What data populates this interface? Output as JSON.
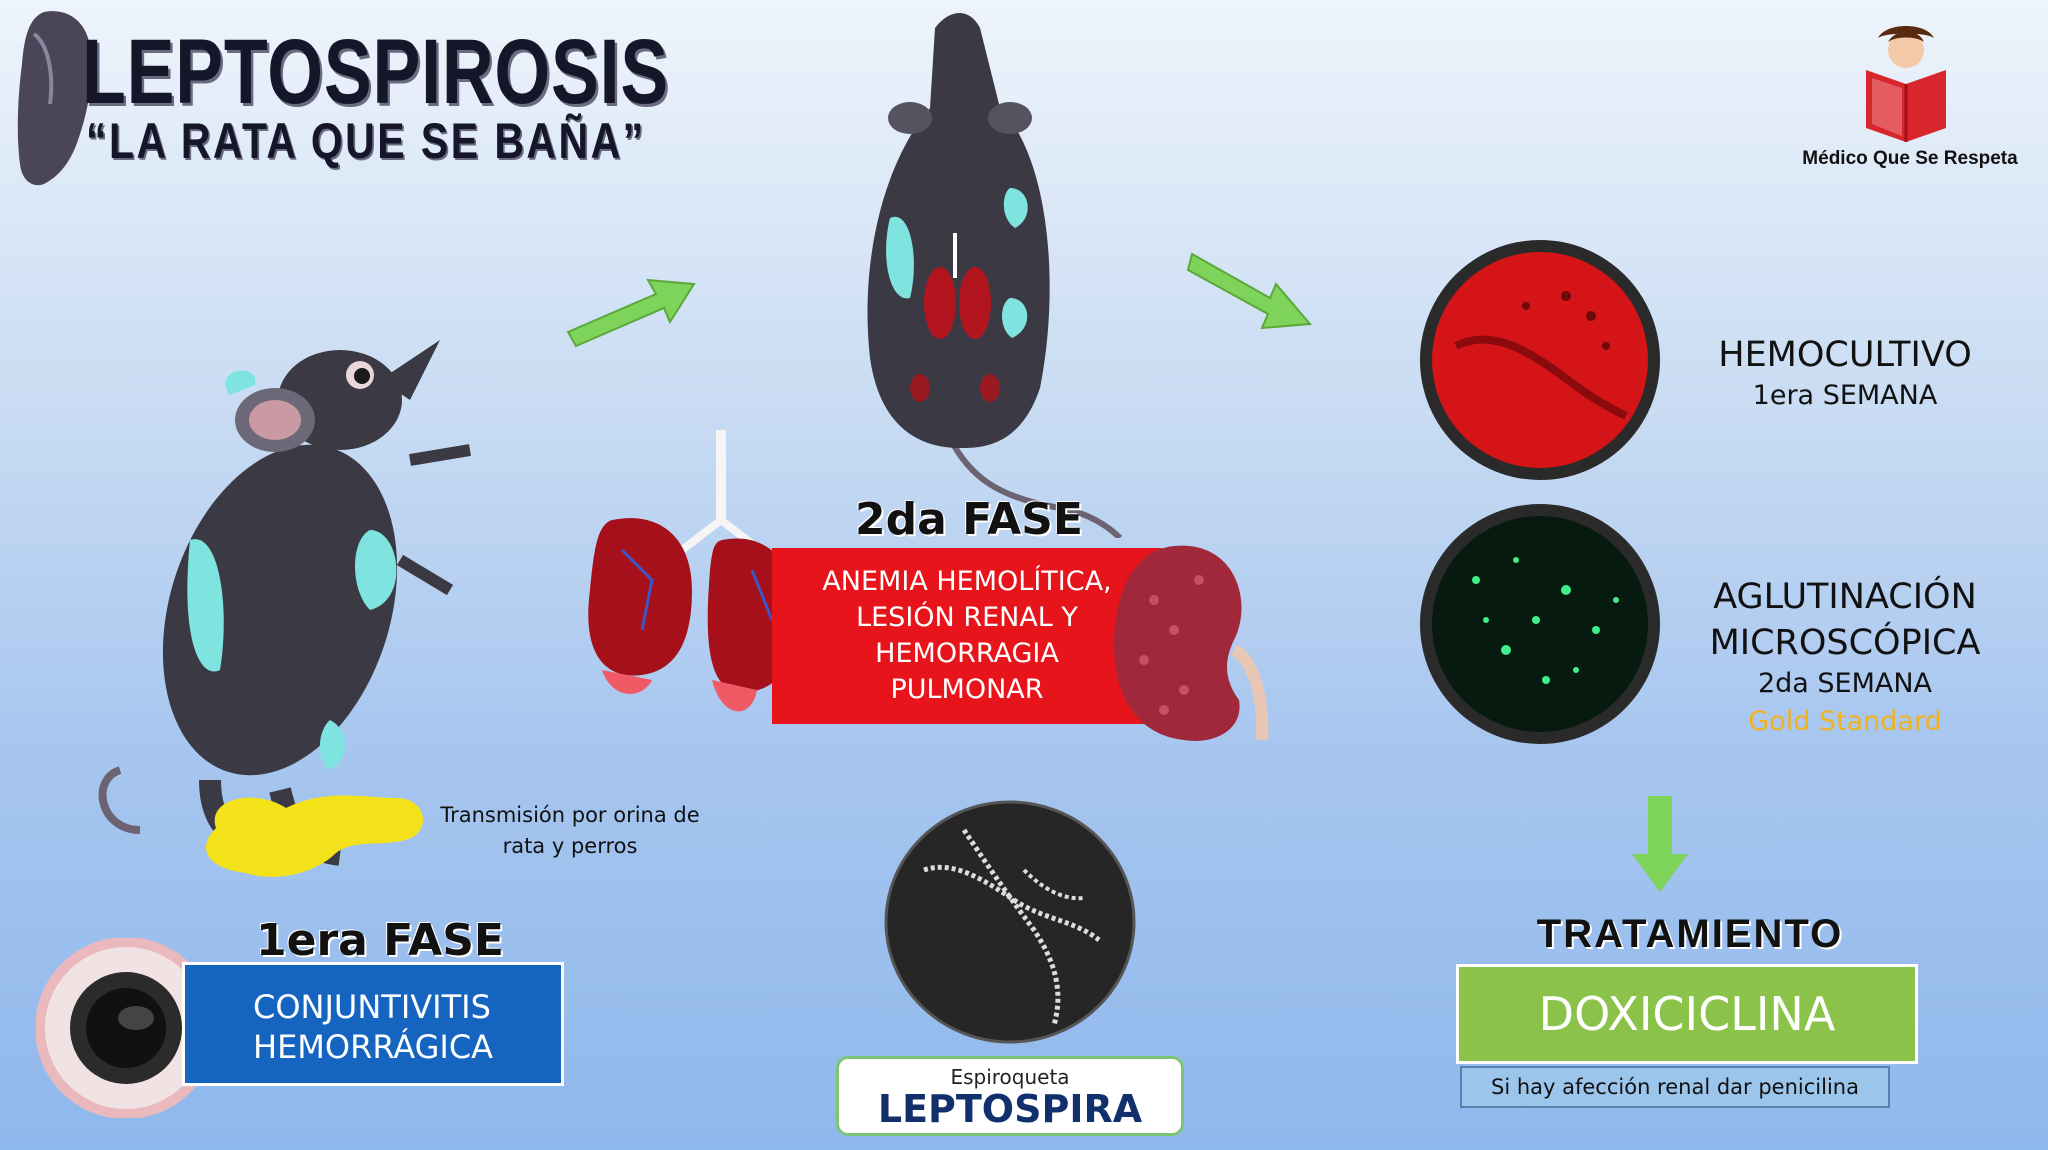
{
  "header": {
    "title": "LEPTOSPIROSIS",
    "subtitle": "“LA RATA QUE SE BAÑA”"
  },
  "logo": {
    "text": "Médico Que Se Respeta"
  },
  "phase1": {
    "heading": "1era FASE",
    "box_line1": "CONJUNTIVITIS",
    "box_line2": "HEMORRÁGICA",
    "transmission_line1": "Transmisión por orina de",
    "transmission_line2": "rata y perros"
  },
  "phase2": {
    "heading": "2da FASE",
    "box_lines": [
      "ANEMIA HEMOLÍTICA,",
      "LESIÓN RENAL Y",
      "HEMORRAGIA",
      "PULMONAR"
    ]
  },
  "organism": {
    "small_label": "Espiroqueta",
    "name": "LEPTOSPIRA"
  },
  "diagnosis": {
    "hemocultivo": {
      "title": "HEMOCULTIVO",
      "week": "1era SEMANA"
    },
    "aglutinacion": {
      "title_line1": "AGLUTINACIÓN",
      "title_line2": "MICROSCÓPICA",
      "week": "2da SEMANA",
      "note": "Gold Standard"
    }
  },
  "treatment": {
    "heading": "TRATAMIENTO",
    "drug": "DOXICICLINA",
    "note": "Si hay afección renal dar penicilina"
  },
  "colors": {
    "conj_box": "#1565c0",
    "red_box": "#e8141b",
    "doxi_box": "#8bc34a",
    "gold_text": "#f2b21e",
    "arrow_green": "#7ed35a"
  }
}
